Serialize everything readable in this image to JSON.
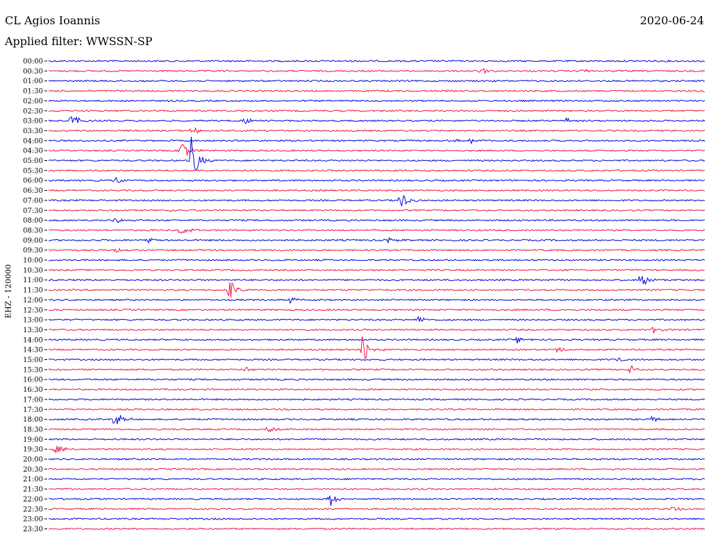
{
  "header": {
    "station": "CL Agios Ioannis",
    "filter": "Applied filter: WWSSN-SP",
    "date": "2020-06-24"
  },
  "chart_data": {
    "type": "line",
    "title": "CL Agios Ioannis",
    "subtitle": "Applied filter: WWSSN-SP",
    "ylabel": "EHZ - 120000",
    "colors": [
      "#0000dd",
      "#ee1144"
    ],
    "rows": [
      "00:00",
      "00:30",
      "01:00",
      "01:30",
      "02:00",
      "02:30",
      "03:00",
      "03:30",
      "04:00",
      "04:30",
      "05:00",
      "05:30",
      "06:00",
      "06:30",
      "07:00",
      "07:30",
      "08:00",
      "08:30",
      "09:00",
      "09:30",
      "10:00",
      "10:30",
      "11:00",
      "11:30",
      "12:00",
      "12:30",
      "13:00",
      "13:30",
      "14:00",
      "14:30",
      "15:00",
      "15:30",
      "16:00",
      "16:30",
      "17:00",
      "17:30",
      "18:00",
      "18:30",
      "19:00",
      "19:30",
      "20:00",
      "20:30",
      "21:00",
      "21:30",
      "22:00",
      "22:30",
      "23:00",
      "23:30"
    ],
    "events": [
      {
        "row": 1,
        "minute": 19.7,
        "amp": 7
      },
      {
        "row": 1,
        "minute": 24.3,
        "amp": 5
      },
      {
        "row": 6,
        "minute": 1.0,
        "amp": 12
      },
      {
        "row": 6,
        "minute": 8.9,
        "amp": 7
      },
      {
        "row": 6,
        "minute": 23.6,
        "amp": 6
      },
      {
        "row": 7,
        "minute": 6.5,
        "amp": 10
      },
      {
        "row": 8,
        "minute": 18.6,
        "amp": 5
      },
      {
        "row": 8,
        "minute": 19.2,
        "amp": 5
      },
      {
        "row": 9,
        "minute": 6.0,
        "amp": 22
      },
      {
        "row": 10,
        "minute": 6.5,
        "amp": 38
      },
      {
        "row": 12,
        "minute": 3.0,
        "amp": 7
      },
      {
        "row": 14,
        "minute": 16.0,
        "amp": 18
      },
      {
        "row": 15,
        "minute": 5.5,
        "amp": 6
      },
      {
        "row": 16,
        "minute": 3.0,
        "amp": 5
      },
      {
        "row": 17,
        "minute": 6.0,
        "amp": 9
      },
      {
        "row": 18,
        "minute": 4.5,
        "amp": 5
      },
      {
        "row": 18,
        "minute": 15.5,
        "amp": 5
      },
      {
        "row": 19,
        "minute": 3.0,
        "amp": 5
      },
      {
        "row": 22,
        "minute": 27.0,
        "amp": 18
      },
      {
        "row": 23,
        "minute": 8.2,
        "amp": 18
      },
      {
        "row": 24,
        "minute": 11.0,
        "amp": 6
      },
      {
        "row": 26,
        "minute": 16.8,
        "amp": 7
      },
      {
        "row": 27,
        "minute": 27.6,
        "amp": 7
      },
      {
        "row": 28,
        "minute": 21.4,
        "amp": 5
      },
      {
        "row": 29,
        "minute": 14.3,
        "amp": 28
      },
      {
        "row": 29,
        "minute": 23.2,
        "amp": 6
      },
      {
        "row": 30,
        "minute": 26.0,
        "amp": 5
      },
      {
        "row": 31,
        "minute": 26.5,
        "amp": 8
      },
      {
        "row": 31,
        "minute": 9.0,
        "amp": 5
      },
      {
        "row": 36,
        "minute": 3.0,
        "amp": 14
      },
      {
        "row": 36,
        "minute": 27.5,
        "amp": 5
      },
      {
        "row": 37,
        "minute": 10.0,
        "amp": 5
      },
      {
        "row": 39,
        "minute": 0.3,
        "amp": 8
      },
      {
        "row": 44,
        "minute": 12.8,
        "amp": 14
      },
      {
        "row": 45,
        "minute": 28.5,
        "amp": 7
      }
    ]
  }
}
